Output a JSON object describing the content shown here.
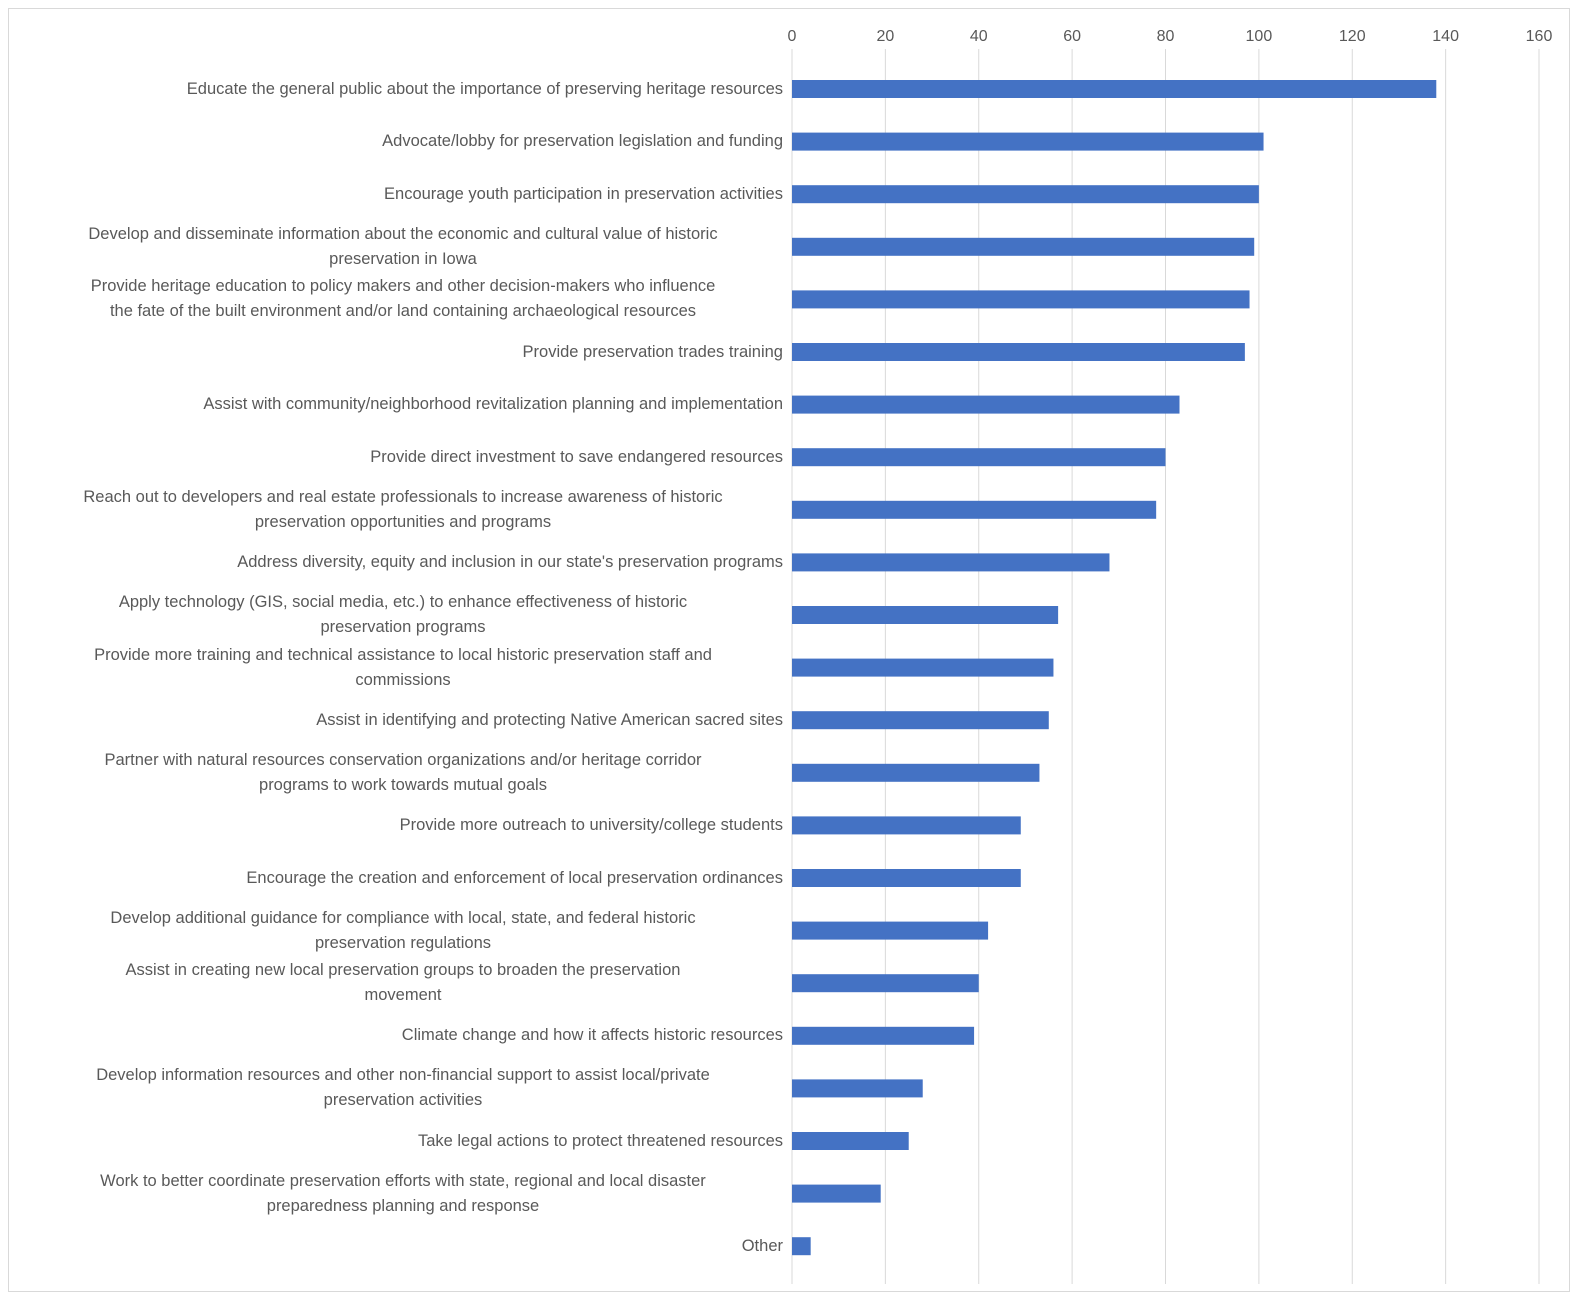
{
  "chart_data": {
    "type": "bar",
    "orientation": "horizontal",
    "title": "",
    "xlabel": "",
    "ylabel": "",
    "xlim": [
      0,
      160
    ],
    "xticks": [
      0,
      20,
      40,
      60,
      80,
      100,
      120,
      140,
      160
    ],
    "x_axis_position": "top",
    "grid": true,
    "legend": "none",
    "bar_color": "#4472c4",
    "grid_color": "#d9d9d9",
    "categories": [
      "Educate the general public about the importance of preserving heritage resources",
      "Advocate/lobby for preservation legislation and funding",
      "Encourage youth participation in preservation activities",
      "Develop and disseminate information about the economic and cultural value of historic preservation in Iowa",
      "Provide heritage education to policy makers and other decision-makers who influence the fate of the built environment and/or land containing archaeological resources",
      "Provide preservation trades training",
      "Assist with community/neighborhood revitalization planning and implementation",
      "Provide direct investment to save endangered resources",
      "Reach out to developers and real estate professionals to increase awareness of historic preservation opportunities and programs",
      "Address diversity, equity and inclusion in our state's preservation programs",
      "Apply technology (GIS, social media, etc.) to enhance effectiveness of historic preservation programs",
      "Provide more training and technical assistance to local historic preservation staff and commissions",
      "Assist in identifying and protecting Native American sacred sites",
      "Partner with natural resources conservation organizations and/or heritage corridor programs to work towards mutual goals",
      "Provide more outreach to university/college students",
      "Encourage the creation and enforcement of local preservation ordinances",
      "Develop additional guidance for compliance with local, state, and federal historic preservation regulations",
      "Assist in creating new local preservation groups to broaden the preservation movement",
      "Climate change and how it affects historic resources",
      "Develop information resources and other non-financial support to assist local/private preservation activities",
      "Take legal actions to protect threatened resources",
      "Work to better coordinate preservation efforts with state, regional and local disaster preparedness planning and response",
      "Other"
    ],
    "category_lines": [
      [
        "Educate the general public about the importance of preserving heritage resources"
      ],
      [
        "Advocate/lobby for preservation legislation and funding"
      ],
      [
        "Encourage youth participation in preservation activities"
      ],
      [
        "Develop and disseminate information about the economic and cultural value of historic",
        "preservation in Iowa"
      ],
      [
        "Provide heritage education to policy makers and other decision-makers who influence",
        "the fate of the built environment and/or land containing archaeological resources"
      ],
      [
        "Provide preservation trades training"
      ],
      [
        "Assist with community/neighborhood revitalization planning and implementation"
      ],
      [
        "Provide direct investment to save endangered resources"
      ],
      [
        "Reach out to developers and real estate professionals to increase awareness of historic",
        "preservation opportunities and programs"
      ],
      [
        "Address diversity, equity and inclusion in our state's preservation programs"
      ],
      [
        "Apply technology (GIS, social media, etc.) to enhance effectiveness of historic",
        "preservation programs"
      ],
      [
        "Provide more training and technical assistance to local historic preservation staff and",
        "commissions"
      ],
      [
        "Assist in identifying and protecting Native American sacred sites"
      ],
      [
        "Partner with natural resources conservation organizations and/or heritage corridor",
        "programs to work towards mutual goals"
      ],
      [
        "Provide more outreach to university/college students"
      ],
      [
        "Encourage the creation and enforcement of local preservation ordinances"
      ],
      [
        "Develop additional guidance for compliance with local, state, and federal historic",
        "preservation regulations"
      ],
      [
        "Assist in creating new local preservation groups to broaden the preservation",
        "movement"
      ],
      [
        "Climate change and how it affects historic resources"
      ],
      [
        "Develop information resources and other non-financial support to assist local/private",
        "preservation activities"
      ],
      [
        "Take legal actions to protect threatened resources"
      ],
      [
        "Work to better coordinate preservation efforts with state, regional and local disaster",
        "preparedness planning and response"
      ],
      [
        "Other"
      ]
    ],
    "values": [
      138,
      101,
      100,
      99,
      98,
      97,
      83,
      80,
      78,
      68,
      57,
      56,
      55,
      53,
      49,
      49,
      42,
      40,
      39,
      28,
      25,
      19,
      4
    ]
  }
}
